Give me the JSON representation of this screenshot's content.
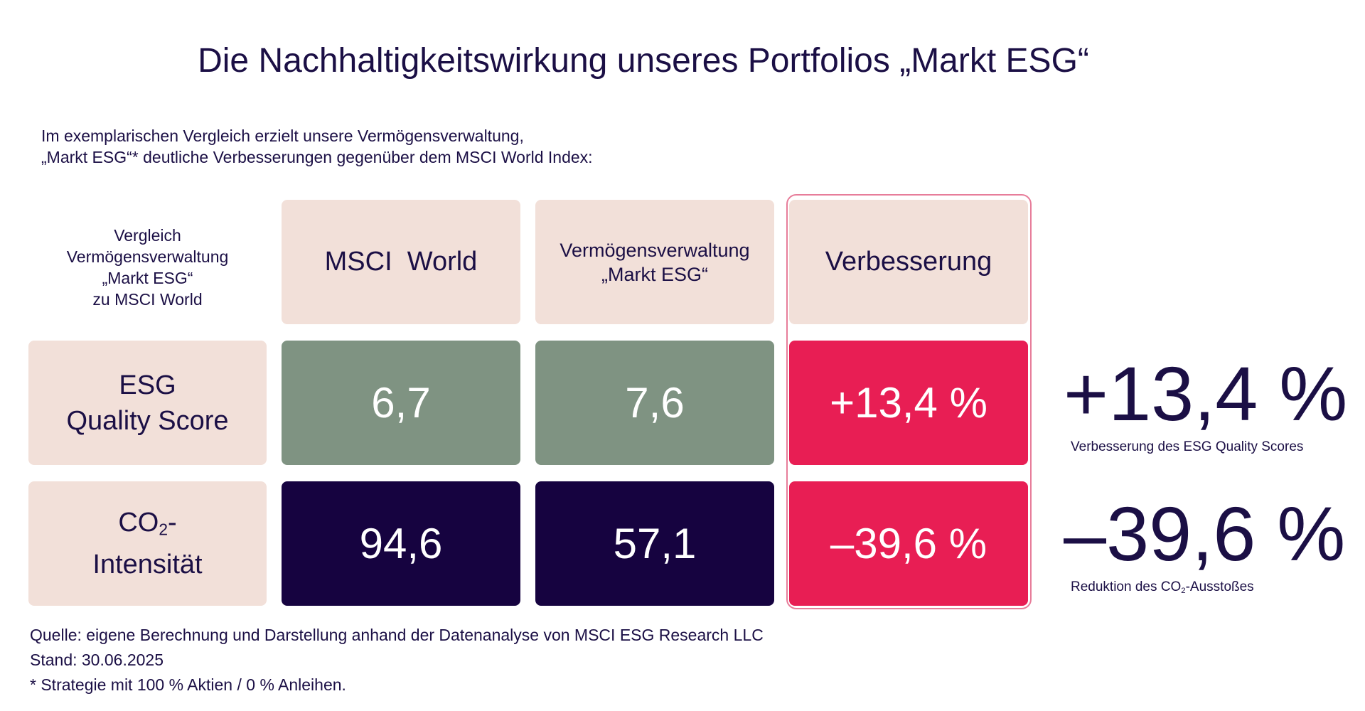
{
  "title": "Die Nachhaltigkeitswirkung unseres Portfolios „Markt ESG“",
  "intro": {
    "line1": "Im exemplarischen Vergleich erzielt unsere Vermögensverwaltung,",
    "line2": "„Markt ESG“* deutliche Verbesserungen gegenüber dem MSCI World Index:"
  },
  "table": {
    "corner": [
      "Vergleich",
      "Vermögensverwaltung",
      "„Markt ESG“",
      "zu MSCI  World"
    ],
    "columns": {
      "msci": "MSCI  World",
      "vv_line1": "Vermögensverwaltung",
      "vv_line2": "„Markt ESG“",
      "improvement": "Verbesserung"
    },
    "rows": {
      "esg": {
        "label_line1": "ESG",
        "label_line2": "Quality Score",
        "msci": "6,7",
        "vv": "7,6",
        "improvement": "+13,4 %"
      },
      "co2": {
        "label_co": "CO",
        "label_sub": "2",
        "label_dash": "-",
        "label_line2": "Intensität",
        "msci": "94,6",
        "vv": "57,1",
        "improvement": "–39,6 %"
      }
    }
  },
  "kpis": {
    "esg": {
      "value": "+13,4 %",
      "label": "Verbesserung des ESG Quality Scores"
    },
    "co2": {
      "value": "–39,6 %",
      "label_pre": "Reduktion des CO",
      "label_sub": "2",
      "label_post": "-Ausstoßes"
    }
  },
  "footer": {
    "source": "Quelle: eigene Berechnung und Darstellung anhand der Datenanalyse von MSCI ESG Research LLC",
    "date": "Stand: 30.06.2025",
    "note": "* Strategie mit 100 % Aktien / 0 % Anleihen."
  },
  "colors": {
    "peach": "#f2e0d9",
    "green": "#7f9382",
    "navy": "#160340",
    "red": "#e81e54",
    "text": "#1b0f45"
  },
  "chart_data": {
    "type": "table",
    "title": "Die Nachhaltigkeitswirkung unseres Portfolios „Markt ESG“",
    "columns": [
      "MSCI  World",
      "Vermögensverwaltung „Markt ESG“",
      "Verbesserung"
    ],
    "rows": [
      {
        "label": "ESG Quality Score",
        "values": [
          6.7,
          7.6
        ],
        "improvement_percent": 13.4
      },
      {
        "label": "CO2-Intensität",
        "values": [
          94.6,
          57.1
        ],
        "improvement_percent": -39.6
      }
    ]
  }
}
